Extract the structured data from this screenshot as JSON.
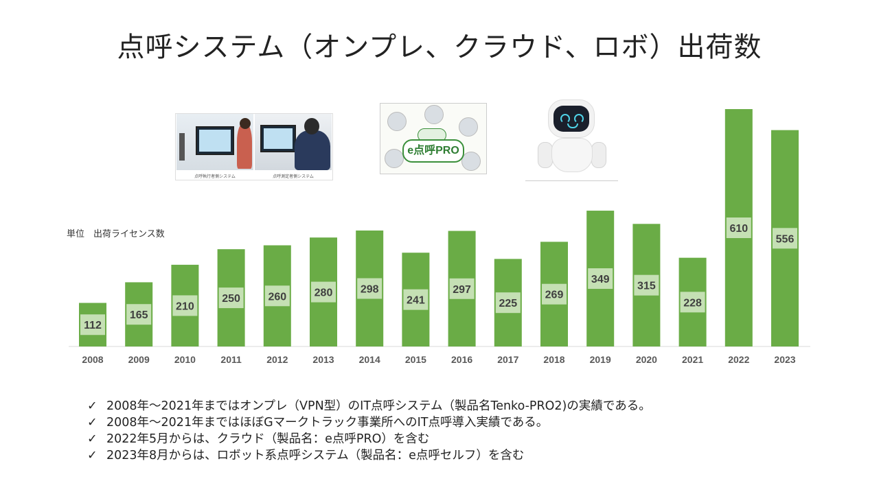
{
  "title": "点呼システム（オンプレ、クラウド、ロボ）出荷数",
  "unit_label": "単位　出荷ライセンス数",
  "photos": {
    "desk_captions": [
      "点呼執行者側システム",
      "点呼測定者側システム"
    ],
    "epro_logo": "e点呼PRO"
  },
  "colors": {
    "bar": "#6aac46",
    "label_box": "#c5e0b4"
  },
  "chart_data": {
    "type": "bar",
    "categories": [
      "2008",
      "2009",
      "2010",
      "2011",
      "2012",
      "2013",
      "2014",
      "2015",
      "2016",
      "2017",
      "2018",
      "2019",
      "2020",
      "2021",
      "2022",
      "2023"
    ],
    "values": [
      112,
      165,
      210,
      250,
      260,
      280,
      298,
      241,
      297,
      225,
      269,
      349,
      315,
      228,
      610,
      556
    ],
    "title": "点呼システム（オンプレ、クラウド、ロボ）出荷数",
    "ylabel": "単位　出荷ライセンス数",
    "ylim": [
      0,
      620
    ],
    "grid": false,
    "data_labels": true
  },
  "notes": {
    "check_icon": "✓",
    "items": [
      "2008年～2021年まではオンプレ（VPN型）のIT点呼システム（製品名Tenko-PRO2)の実績である。",
      "2008年～2021年まではほぼGマークトラック事業所へのIT点呼導入実績である。",
      "2022年5月からは、クラウド（製品名：e点呼PRO）を含む",
      "2023年8月からは、ロボット系点呼システム（製品名：e点呼セルフ）を含む"
    ]
  }
}
